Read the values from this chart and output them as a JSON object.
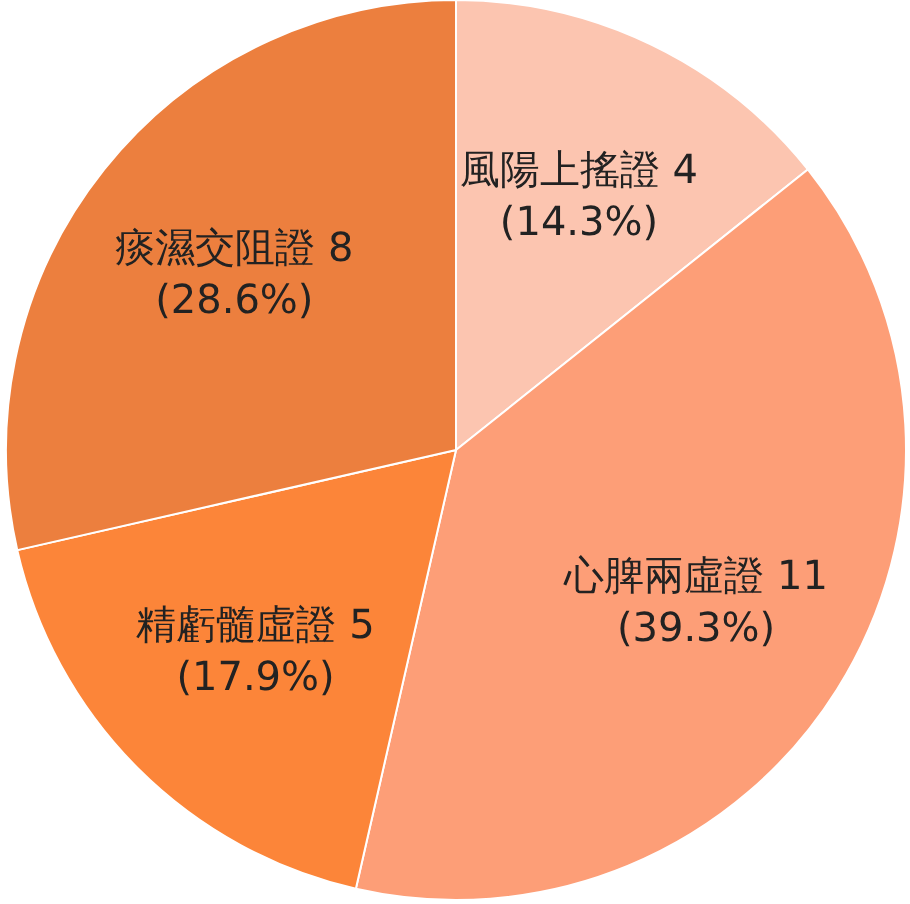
{
  "chart_data": {
    "type": "pie",
    "categories": [
      "風陽上搖證",
      "心脾兩虛證",
      "精虧髓虛證",
      "痰濕交阻證"
    ],
    "values": [
      4,
      11,
      5,
      8
    ],
    "colors": [
      "#fcc5b0",
      "#fd9e77",
      "#fc8539",
      "#ec7f3e"
    ],
    "value_labels": [
      "4\n(14.3%)",
      "11\n(39.3%)",
      "5\n(17.9%)",
      "8\n(28.6%)"
    ]
  }
}
